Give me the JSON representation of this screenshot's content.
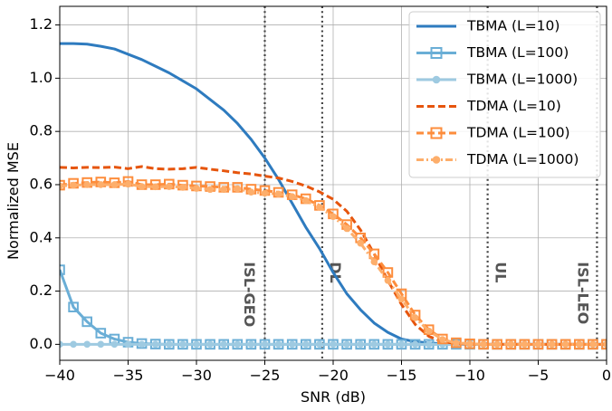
{
  "chart_data": {
    "type": "line",
    "title": "",
    "xlabel": "SNR (dB)",
    "ylabel": "Normalized MSE",
    "xlim": [
      -40,
      0
    ],
    "ylim": [
      -0.06,
      1.27
    ],
    "x_ticks": [
      -40,
      -35,
      -30,
      -25,
      -20,
      -15,
      -10,
      -5,
      0
    ],
    "x_tick_labels": [
      "−40",
      "−35",
      "−30",
      "−25",
      "−20",
      "−15",
      "−10",
      "−5",
      "0"
    ],
    "y_ticks": [
      0.0,
      0.2,
      0.4,
      0.6,
      0.8,
      1.0,
      1.2
    ],
    "y_tick_labels": [
      "0.0",
      "0.2",
      "0.4",
      "0.6",
      "0.8",
      "1.0",
      "1.2"
    ],
    "grid": true,
    "legend_position": "top-right",
    "x": [
      -40,
      -39,
      -38,
      -37,
      -36,
      -35,
      -34,
      -33,
      -32,
      -31,
      -30,
      -29,
      -28,
      -27,
      -26,
      -25,
      -24,
      -23,
      -22,
      -21,
      -20,
      -19,
      -18,
      -17,
      -16,
      -15,
      -14,
      -13,
      -12,
      -11,
      -10,
      -9,
      -8,
      -7,
      -6,
      -5,
      -4,
      -3,
      -2,
      -1,
      0
    ],
    "series": [
      {
        "name": "TBMA (L=10)",
        "color": "#2e7bbf",
        "line_style": "solid",
        "marker": "none",
        "values": [
          1.13,
          1.13,
          1.128,
          1.12,
          1.11,
          1.09,
          1.07,
          1.045,
          1.02,
          0.99,
          0.96,
          0.92,
          0.88,
          0.83,
          0.77,
          0.7,
          0.62,
          0.53,
          0.44,
          0.36,
          0.27,
          0.19,
          0.13,
          0.08,
          0.045,
          0.02,
          0.01,
          0.005,
          0.002,
          0.001,
          0,
          0,
          0,
          0,
          0,
          0,
          0,
          0,
          0,
          0,
          0
        ]
      },
      {
        "name": "TBMA (L=100)",
        "color": "#6aaed6",
        "line_style": "solid",
        "marker": "square-open",
        "values": [
          0.28,
          0.14,
          0.085,
          0.042,
          0.02,
          0.008,
          0.003,
          0.001,
          0,
          0,
          0,
          0,
          0,
          0,
          0,
          0,
          0,
          0,
          0,
          0,
          0,
          0,
          0,
          0,
          0,
          0,
          0,
          0,
          0,
          0,
          0,
          0,
          0,
          0,
          0,
          0,
          0,
          0,
          0,
          0,
          0
        ]
      },
      {
        "name": "TBMA (L=1000)",
        "color": "#9ecae1",
        "line_style": "solid",
        "marker": "circle",
        "values": [
          0,
          0,
          0,
          0,
          0,
          0,
          0,
          0,
          0,
          0,
          0,
          0,
          0,
          0,
          0,
          0,
          0,
          0,
          0,
          0,
          0,
          0,
          0,
          0,
          0,
          0,
          0,
          0,
          0,
          0,
          0,
          0,
          0,
          0,
          0,
          0,
          0,
          0,
          0,
          0,
          0
        ]
      },
      {
        "name": "TDMA (L=10)",
        "color": "#e6550d",
        "line_style": "dashed",
        "marker": "none",
        "values": [
          0.665,
          0.663,
          0.665,
          0.664,
          0.666,
          0.66,
          0.668,
          0.66,
          0.658,
          0.66,
          0.665,
          0.658,
          0.652,
          0.645,
          0.64,
          0.632,
          0.625,
          0.612,
          0.595,
          0.573,
          0.545,
          0.5,
          0.43,
          0.34,
          0.24,
          0.15,
          0.075,
          0.03,
          0.01,
          0.003,
          0.001,
          0,
          0,
          0,
          0,
          0,
          0,
          0,
          0,
          0,
          0
        ]
      },
      {
        "name": "TDMA (L=100)",
        "color": "#fd8d3c",
        "line_style": "dashed",
        "marker": "square-open",
        "values": [
          0.598,
          0.605,
          0.608,
          0.61,
          0.607,
          0.612,
          0.6,
          0.6,
          0.602,
          0.598,
          0.595,
          0.593,
          0.59,
          0.59,
          0.583,
          0.578,
          0.571,
          0.562,
          0.547,
          0.522,
          0.49,
          0.45,
          0.4,
          0.34,
          0.27,
          0.19,
          0.11,
          0.055,
          0.02,
          0.006,
          0.002,
          0,
          0,
          0,
          0,
          0,
          0,
          0,
          0,
          0,
          0
        ]
      },
      {
        "name": "TDMA (L=1000)",
        "color": "#fdae6b",
        "line_style": "dashdot",
        "marker": "circle",
        "values": [
          0.595,
          0.598,
          0.6,
          0.6,
          0.6,
          0.602,
          0.593,
          0.592,
          0.593,
          0.59,
          0.586,
          0.582,
          0.582,
          0.585,
          0.572,
          0.568,
          0.565,
          0.555,
          0.54,
          0.515,
          0.48,
          0.435,
          0.38,
          0.31,
          0.24,
          0.17,
          0.1,
          0.05,
          0.018,
          0.005,
          0.002,
          0,
          0,
          0,
          0,
          0,
          0,
          0,
          0,
          0,
          0
        ]
      }
    ],
    "vertical_lines": [
      {
        "label": "ISL-GEO",
        "x": -25,
        "label_x": -26.2,
        "label_y": 0.31
      },
      {
        "label": "DL",
        "x": -20.8,
        "label_x": -19.9,
        "label_y": 0.31
      },
      {
        "label": "UL",
        "x": -8.7,
        "label_x": -7.8,
        "label_y": 0.31
      },
      {
        "label": "ISL-LEO",
        "x": -0.7,
        "label_x": -1.8,
        "label_y": 0.31
      }
    ]
  }
}
